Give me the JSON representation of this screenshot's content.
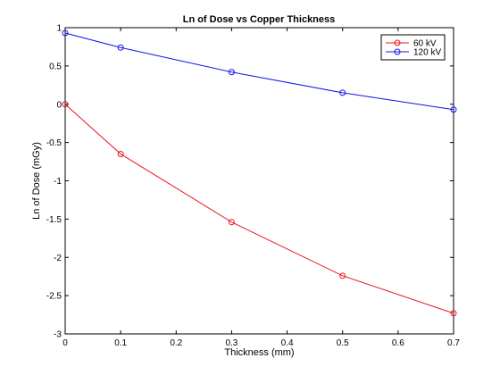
{
  "chart_data": {
    "type": "line",
    "title": "Ln of Dose vs Copper Thickness",
    "xlabel": "Thickness (mm)",
    "ylabel": "Ln of Dose (mGy)",
    "xlim": [
      0,
      0.7
    ],
    "ylim": [
      -3,
      1
    ],
    "xticks": [
      0,
      0.1,
      0.2,
      0.3,
      0.4,
      0.5,
      0.6,
      0.7
    ],
    "yticks": [
      -3,
      -2.5,
      -2,
      -1.5,
      -1,
      -0.5,
      0,
      0.5,
      1
    ],
    "xtick_labels": [
      "0",
      "0.1",
      "0.2",
      "0.3",
      "0.4",
      "0.5",
      "0.6",
      "0.7"
    ],
    "ytick_labels": [
      "-3",
      "-2.5",
      "-2",
      "-1.5",
      "-1",
      "-0.5",
      "0",
      "0.5",
      "1"
    ],
    "grid": false,
    "legend_position": "top-right",
    "series": [
      {
        "name": "60 kV",
        "color": "#e8141e",
        "marker": "circle",
        "x": [
          0,
          0.1,
          0.3,
          0.5,
          0.7
        ],
        "y": [
          0.0,
          -0.65,
          -1.54,
          -2.24,
          -2.73
        ]
      },
      {
        "name": "120 kV",
        "color": "#1414e8",
        "marker": "circle",
        "x": [
          0,
          0.1,
          0.3,
          0.5,
          0.7
        ],
        "y": [
          0.93,
          0.74,
          0.42,
          0.15,
          -0.07
        ]
      }
    ]
  }
}
